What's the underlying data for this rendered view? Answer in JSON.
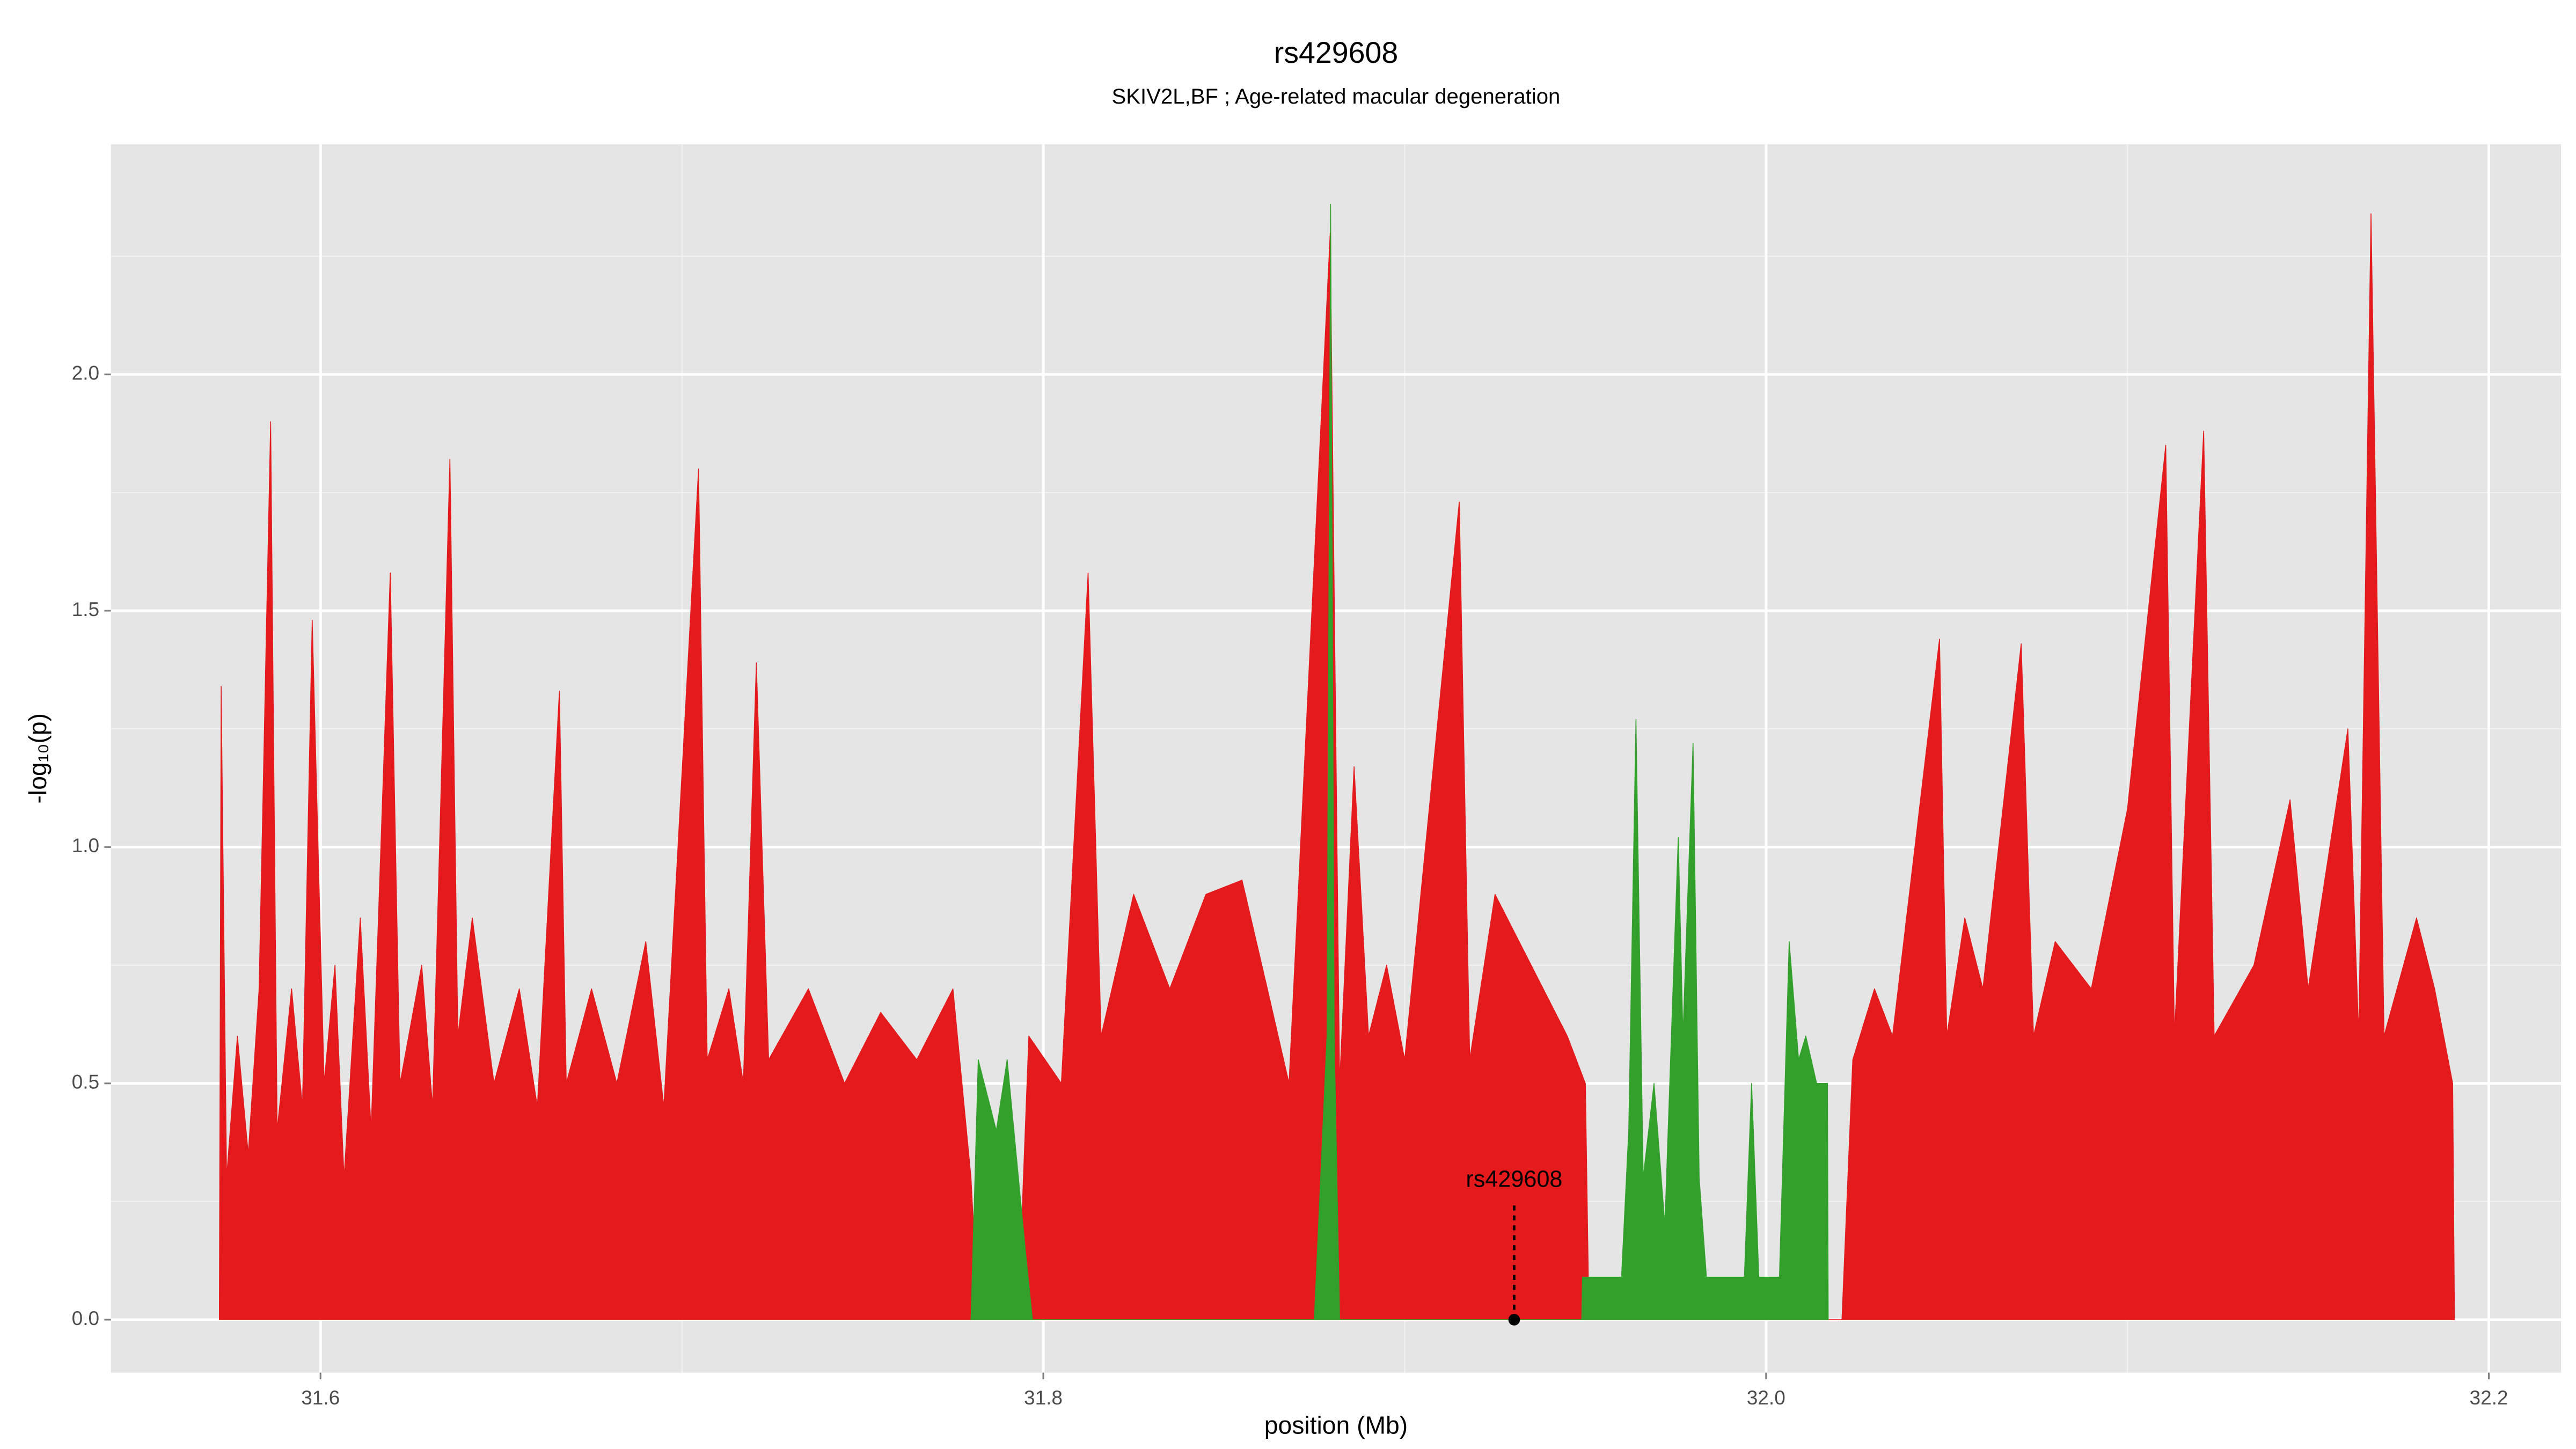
{
  "chart_data": {
    "type": "area",
    "title": "rs429608",
    "subtitle": "SKIV2L,BF ; Age-related macular degeneration",
    "x_label": "position (Mb)",
    "y_label": "-log₁₀(p)",
    "xlim": [
      31.542,
      32.22
    ],
    "ylim": [
      -0.112,
      2.487
    ],
    "xticks": [
      31.6,
      31.8,
      {
        "value": 32.0,
        "label": "32.0"
      },
      32.2
    ],
    "yticks": [
      {
        "value": 0,
        "label": "0.0"
      },
      0.5,
      {
        "value": 1,
        "label": "1.0"
      },
      1.5,
      {
        "value": 2,
        "label": "2.0"
      }
    ],
    "grid": true,
    "series": [
      {
        "color": "#e41a1c",
        "x": [
          31.572,
          31.5725,
          31.574,
          31.577,
          31.58,
          31.583,
          31.5862,
          31.588,
          31.592,
          31.595,
          31.5977,
          31.601,
          31.604,
          31.6065,
          31.611,
          31.614,
          31.6193,
          31.622,
          31.628,
          31.631,
          31.6358,
          31.638,
          31.642,
          31.648,
          31.655,
          31.66,
          31.6661,
          31.668,
          31.675,
          31.682,
          31.69,
          31.695,
          31.7046,
          31.707,
          31.713,
          31.717,
          31.7206,
          31.724,
          31.735,
          31.745,
          31.755,
          31.765,
          31.775,
          31.78,
          31.782,
          31.793,
          31.796,
          31.805,
          31.8124,
          31.816,
          31.825,
          31.835,
          31.845,
          31.855,
          31.862,
          31.868,
          31.8794,
          31.882,
          31.886,
          31.89,
          31.895,
          31.9,
          31.9151,
          31.918,
          31.925,
          31.935,
          31.945,
          31.95,
          31.951,
          32.021,
          32.024,
          32.03,
          32.035,
          32.048,
          32.05,
          32.055,
          32.06,
          32.0706,
          32.074,
          32.08,
          32.09,
          32.1,
          32.1106,
          32.113,
          32.1211,
          32.124,
          32.135,
          32.145,
          32.15,
          32.161,
          32.164,
          32.1674,
          32.171,
          32.18,
          32.185,
          32.19,
          32.1905
        ],
        "values": [
          0,
          1.34,
          0.3,
          0.6,
          0.35,
          0.7,
          1.9,
          0.4,
          0.7,
          0.45,
          1.48,
          0.5,
          0.75,
          0.3,
          0.85,
          0.4,
          1.58,
          0.5,
          0.75,
          0.45,
          1.82,
          0.6,
          0.85,
          0.5,
          0.7,
          0.45,
          1.33,
          0.5,
          0.7,
          0.5,
          0.8,
          0.45,
          1.8,
          0.55,
          0.7,
          0.5,
          1.39,
          0.55,
          0.7,
          0.5,
          0.65,
          0.55,
          0.7,
          0.3,
          0,
          0,
          0.6,
          0.5,
          1.58,
          0.6,
          0.9,
          0.7,
          0.9,
          0.93,
          0.7,
          0.5,
          2.3,
          0.5,
          1.17,
          0.6,
          0.75,
          0.55,
          1.73,
          0.55,
          0.9,
          0.75,
          0.6,
          0.5,
          0,
          0,
          0.55,
          0.7,
          0.6,
          1.44,
          0.6,
          0.85,
          0.7,
          1.43,
          0.6,
          0.8,
          0.7,
          1.08,
          1.85,
          0.6,
          1.88,
          0.6,
          0.75,
          1.1,
          0.7,
          1.25,
          0.6,
          2.34,
          0.6,
          0.85,
          0.7,
          0.5,
          0
        ]
      },
      {
        "color": "#33a02c",
        "x": [
          31.78,
          31.782,
          31.787,
          31.79,
          31.795,
          31.797,
          31.875,
          31.8785,
          31.8795,
          31.8805,
          31.882,
          31.949,
          31.9492,
          31.96,
          31.962,
          31.964,
          31.966,
          31.969,
          31.972,
          31.9757,
          31.977,
          31.9798,
          31.9815,
          31.9835,
          31.994,
          31.996,
          31.998,
          32.0037,
          32.0064,
          32.009,
          32.011,
          32.014,
          32.017,
          32.0172
        ],
        "values": [
          0,
          0.55,
          0.4,
          0.55,
          0.15,
          0,
          0,
          0.6,
          2.36,
          0.6,
          0,
          0,
          0.09,
          0.09,
          0.4,
          1.27,
          0.3,
          0.5,
          0.2,
          1.02,
          0.6,
          1.22,
          0.3,
          0.09,
          0.09,
          0.5,
          0.09,
          0.09,
          0.8,
          0.55,
          0.6,
          0.5,
          0.5,
          0
        ]
      }
    ],
    "annotations": [
      {
        "text": "rs429608",
        "x": 31.9303,
        "y": 0
      }
    ]
  }
}
